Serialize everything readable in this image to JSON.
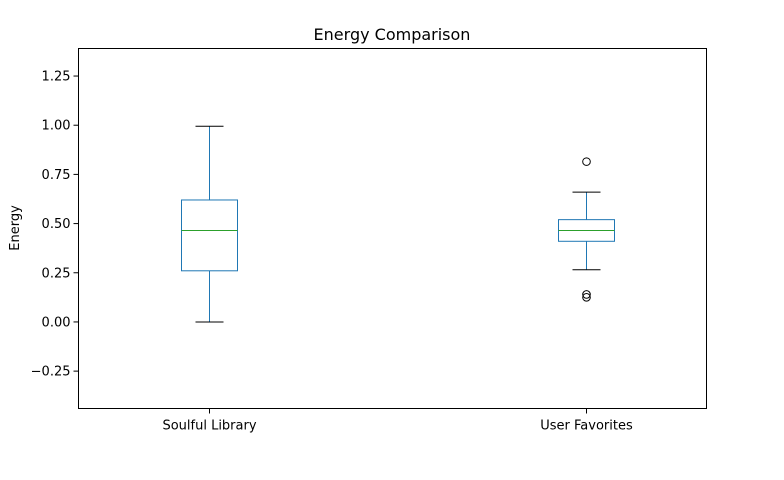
{
  "chart_data": {
    "type": "box",
    "title": "Energy Comparison",
    "xlabel": "",
    "ylabel": "Energy",
    "ylim": [
      -0.44,
      1.39
    ],
    "yticks": [
      -0.25,
      0.0,
      0.25,
      0.5,
      0.75,
      1.0,
      1.25
    ],
    "ytick_labels": [
      "−0.25",
      "0.00",
      "0.25",
      "0.50",
      "0.75",
      "1.00",
      "1.25"
    ],
    "categories": [
      "Soulful Library",
      "User Favorites"
    ],
    "boxes": [
      {
        "name": "Soulful Library",
        "whisker_low": 0.0,
        "q1": 0.26,
        "median": 0.465,
        "q3": 0.62,
        "whisker_high": 0.995,
        "outliers": []
      },
      {
        "name": "User Favorites",
        "whisker_low": 0.265,
        "q1": 0.41,
        "median": 0.465,
        "q3": 0.52,
        "whisker_high": 0.66,
        "outliers": [
          0.815,
          0.14,
          0.125
        ]
      }
    ],
    "grid": false,
    "colors": {
      "box": "#1f77b4",
      "median": "#2ca02c",
      "whisker_cap": "#000000",
      "outlier": "#000000"
    }
  }
}
